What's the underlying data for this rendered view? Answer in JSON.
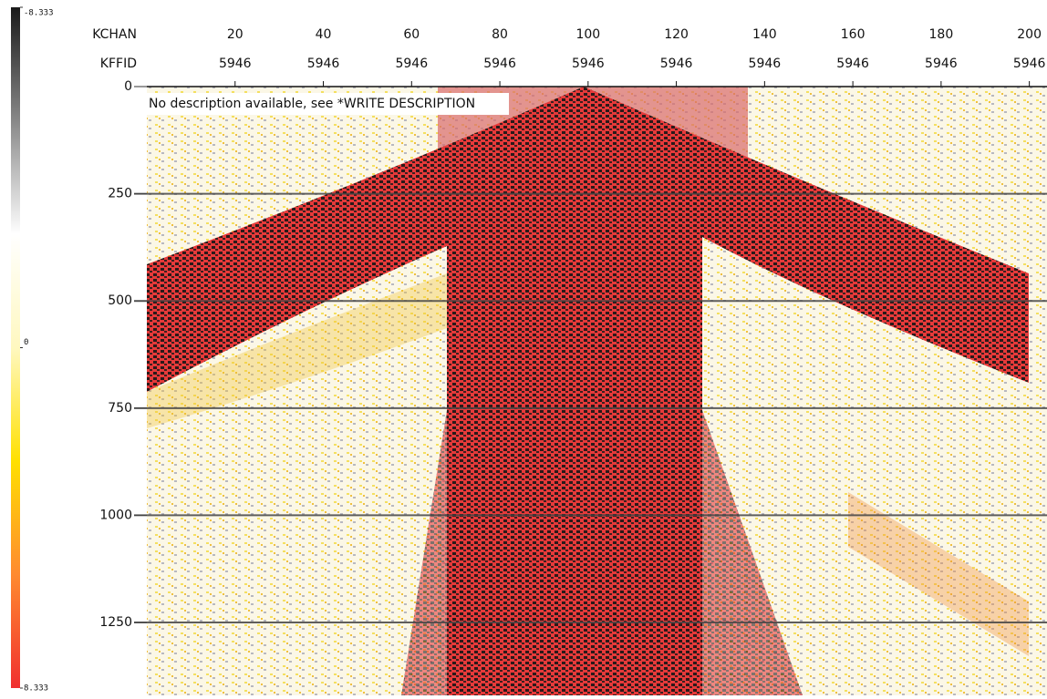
{
  "chart_data": {
    "type": "seismic",
    "annotation": "No description available, see *WRITE DESCRIPTION",
    "header_labels": [
      "KCHAN",
      "KFFID"
    ],
    "xlim": [
      0,
      204
    ],
    "xticks": [
      20,
      40,
      60,
      80,
      100,
      120,
      140,
      160,
      180,
      200
    ],
    "kffid": [
      5946,
      5946,
      5946,
      5946,
      5946,
      5946,
      5946,
      5946,
      5946,
      5946
    ],
    "ylim": [
      0,
      1420
    ],
    "yticks": [
      0,
      250,
      500,
      750,
      1000,
      1250
    ],
    "grid": true,
    "colorbar": {
      "lim": [
        -8.333,
        8.333
      ],
      "ticks": [
        -8.333,
        0,
        8.333
      ],
      "colors": [
        "#1a1a1a",
        "#888888",
        "#ffffff",
        "#fff8c0",
        "#ffe000",
        "#ff8a30",
        "#f03030"
      ]
    }
  }
}
